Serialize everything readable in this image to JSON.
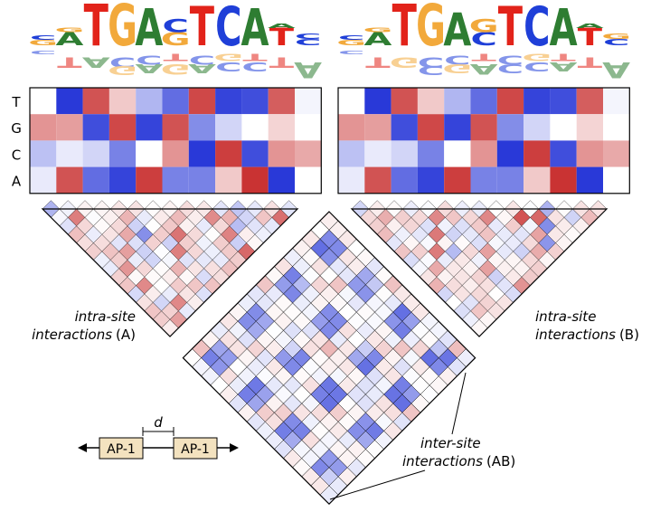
{
  "row_labels": [
    "T",
    "G",
    "C",
    "A"
  ],
  "logo_glyphs": [
    "A",
    "C",
    "G",
    "T"
  ],
  "captions": {
    "intra_a_line1": "intra-site",
    "intra_a_line2_italic": "interactions",
    "intra_a_line2_tag": "(A)",
    "intra_b_line1": "intra-site",
    "intra_b_line2_italic": "interactions",
    "intra_b_line2_tag": "(B)",
    "inter_line1": "inter-site",
    "inter_line2_italic": "interactions",
    "inter_line2_tag": "(AB)"
  },
  "schematic": {
    "site_a": "AP-1",
    "site_b": "AP-1",
    "distance_symbol": "d"
  },
  "colors": {
    "A": "#2e7d32",
    "C": "#1f3fd8",
    "G": "#f2a93b",
    "T": "#e2231a",
    "heat_pos": "#c62828",
    "heat_neg": "#1e2fd6",
    "box_fill": "#f3e2bf"
  },
  "motif_a": {
    "heatmap": [
      [
        0.0,
        -0.95,
        0.8,
        0.25,
        -0.35,
        -0.7,
        0.85,
        -0.9,
        -0.85,
        0.75,
        -0.05
      ],
      [
        0.5,
        0.45,
        -0.85,
        0.85,
        -0.9,
        0.8,
        -0.55,
        -0.2,
        0.0,
        0.2,
        0.0
      ],
      [
        -0.3,
        -0.1,
        -0.2,
        -0.6,
        0.0,
        0.5,
        -0.95,
        0.9,
        -0.85,
        0.5,
        0.4
      ],
      [
        -0.1,
        0.8,
        -0.7,
        -0.9,
        0.9,
        -0.6,
        -0.6,
        0.25,
        0.95,
        -0.95,
        0.0
      ]
    ],
    "logo": [
      {
        "up": [
          [
            "G",
            0.12
          ],
          [
            "C",
            0.1
          ]
        ],
        "down": [
          [
            "C",
            0.1
          ]
        ]
      },
      {
        "up": [
          [
            "A",
            0.3
          ],
          [
            "G",
            0.1
          ]
        ],
        "down": [
          [
            "T",
            0.3
          ]
        ]
      },
      {
        "up": [
          [
            "T",
            0.95
          ]
        ],
        "down": [
          [
            "A",
            0.3
          ]
        ]
      },
      {
        "up": [
          [
            "G",
            0.95
          ]
        ],
        "down": [
          [
            "C",
            0.3
          ],
          [
            "G",
            0.25
          ]
        ]
      },
      {
        "up": [
          [
            "A",
            0.85
          ]
        ],
        "down": [
          [
            "C",
            0.25
          ],
          [
            "A",
            0.25
          ]
        ]
      },
      {
        "up": [
          [
            "G",
            0.3
          ],
          [
            "C",
            0.3
          ]
        ],
        "down": [
          [
            "T",
            0.2
          ],
          [
            "G",
            0.3
          ]
        ]
      },
      {
        "up": [
          [
            "T",
            0.9
          ]
        ],
        "down": [
          [
            "C",
            0.25
          ],
          [
            "A",
            0.25
          ]
        ]
      },
      {
        "up": [
          [
            "C",
            0.9
          ]
        ],
        "down": [
          [
            "G",
            0.2
          ],
          [
            "C",
            0.25
          ]
        ]
      },
      {
        "up": [
          [
            "A",
            0.85
          ]
        ],
        "down": [
          [
            "T",
            0.2
          ],
          [
            "C",
            0.25
          ]
        ]
      },
      {
        "up": [
          [
            "T",
            0.4
          ],
          [
            "A",
            0.1
          ]
        ],
        "down": [
          [
            "T",
            0.3
          ]
        ]
      },
      {
        "up": [
          [
            "C",
            0.15
          ],
          [
            "C",
            0.12
          ]
        ],
        "down": [
          [
            "A",
            0.45
          ]
        ]
      }
    ]
  },
  "motif_b": {
    "heatmap": [
      [
        0.0,
        -0.95,
        0.8,
        0.25,
        -0.35,
        -0.7,
        0.85,
        -0.9,
        -0.85,
        0.75,
        -0.05
      ],
      [
        0.5,
        0.45,
        -0.85,
        0.85,
        -0.9,
        0.8,
        -0.55,
        -0.2,
        0.0,
        0.2,
        0.0
      ],
      [
        -0.3,
        -0.1,
        -0.2,
        -0.6,
        0.0,
        0.5,
        -0.95,
        0.9,
        -0.85,
        0.5,
        0.4
      ],
      [
        -0.1,
        0.8,
        -0.7,
        -0.9,
        0.9,
        -0.6,
        -0.6,
        0.25,
        0.95,
        -0.95,
        0.0
      ]
    ],
    "logo": [
      {
        "up": [
          [
            "G",
            0.12
          ],
          [
            "C",
            0.1
          ]
        ],
        "down": [
          [
            "C",
            0.1
          ]
        ]
      },
      {
        "up": [
          [
            "A",
            0.3
          ],
          [
            "G",
            0.1
          ]
        ],
        "down": [
          [
            "T",
            0.3
          ]
        ]
      },
      {
        "up": [
          [
            "T",
            0.95
          ]
        ],
        "down": [
          [
            "G",
            0.3
          ]
        ]
      },
      {
        "up": [
          [
            "G",
            0.95
          ]
        ],
        "down": [
          [
            "C",
            0.3
          ],
          [
            "C",
            0.25
          ]
        ]
      },
      {
        "up": [
          [
            "A",
            0.75
          ]
        ],
        "down": [
          [
            "C",
            0.25
          ],
          [
            "G",
            0.25
          ]
        ]
      },
      {
        "up": [
          [
            "C",
            0.3
          ],
          [
            "G",
            0.3
          ]
        ],
        "down": [
          [
            "T",
            0.2
          ],
          [
            "A",
            0.3
          ]
        ]
      },
      {
        "up": [
          [
            "T",
            0.9
          ]
        ],
        "down": [
          [
            "C",
            0.25
          ],
          [
            "C",
            0.25
          ]
        ]
      },
      {
        "up": [
          [
            "C",
            0.9
          ]
        ],
        "down": [
          [
            "G",
            0.2
          ],
          [
            "C",
            0.25
          ]
        ]
      },
      {
        "up": [
          [
            "A",
            0.85
          ]
        ],
        "down": [
          [
            "T",
            0.2
          ],
          [
            "A",
            0.25
          ]
        ]
      },
      {
        "up": [
          [
            "T",
            0.4
          ],
          [
            "A",
            0.1
          ]
        ],
        "down": [
          [
            "T",
            0.3
          ]
        ]
      },
      {
        "up": [
          [
            "C",
            0.15
          ],
          [
            "G",
            0.12
          ]
        ],
        "down": [
          [
            "A",
            0.45
          ]
        ]
      }
    ]
  }
}
